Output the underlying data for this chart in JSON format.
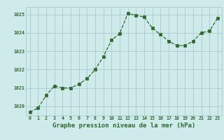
{
  "x": [
    0,
    1,
    2,
    3,
    4,
    5,
    6,
    7,
    8,
    9,
    10,
    11,
    12,
    13,
    14,
    15,
    16,
    17,
    18,
    19,
    20,
    21,
    22,
    23
  ],
  "y": [
    1019.7,
    1019.9,
    1020.6,
    1021.1,
    1021.0,
    1021.0,
    1021.2,
    1021.5,
    1022.0,
    1022.7,
    1023.6,
    1023.95,
    1025.05,
    1024.95,
    1024.85,
    1024.25,
    1023.9,
    1023.55,
    1023.3,
    1023.3,
    1023.55,
    1024.0,
    1024.1,
    1024.8
  ],
  "line_color": "#2d6a2d",
  "marker_color": "#2d6a2d",
  "bg_color": "#ceeaea",
  "grid_color": "#aacaca",
  "xlabel": "Graphe pression niveau de la mer (hPa)",
  "ylim": [
    1019.5,
    1025.4
  ],
  "yticks": [
    1020,
    1021,
    1022,
    1023,
    1024,
    1025
  ],
  "xticks": [
    0,
    1,
    2,
    3,
    4,
    5,
    6,
    7,
    8,
    9,
    10,
    11,
    12,
    13,
    14,
    15,
    16,
    17,
    18,
    19,
    20,
    21,
    22,
    23
  ],
  "tick_label_color": "#2d6a2d",
  "xlabel_color": "#2d6a2d"
}
